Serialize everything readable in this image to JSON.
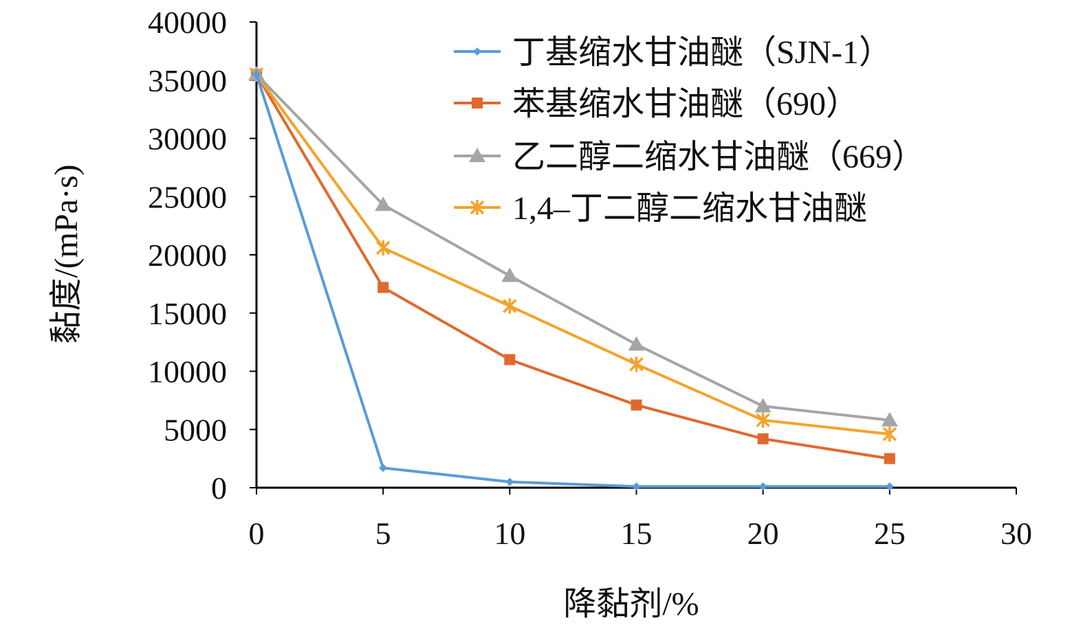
{
  "chart_data": {
    "type": "line",
    "xlabel": "降黏剂/%",
    "ylabel": "黏度/(mPa·s)",
    "x": [
      0,
      5,
      10,
      15,
      20,
      25
    ],
    "xlim": [
      0,
      30
    ],
    "ylim": [
      0,
      40000
    ],
    "xticks": [
      "0",
      "5",
      "10",
      "15",
      "20",
      "25",
      "30"
    ],
    "yticks": [
      "0",
      "5000",
      "10000",
      "15000",
      "20000",
      "25000",
      "30000",
      "35000",
      "40000"
    ],
    "grid": false,
    "legend_position": "top-right",
    "series": [
      {
        "name": "丁基缩水甘油醚（SJN-1）",
        "marker": "diamond",
        "color": "#5B9BD5",
        "values": [
          35500,
          1700,
          500,
          100,
          100,
          100
        ]
      },
      {
        "name": "苯基缩水甘油醚（690）",
        "marker": "square",
        "color": "#E0692E",
        "values": [
          35500,
          17200,
          11000,
          7100,
          4200,
          2500
        ]
      },
      {
        "name": "乙二醇二缩水甘油醚（669）",
        "marker": "triangle",
        "color": "#A5A5A5",
        "values": [
          35500,
          24300,
          18200,
          12300,
          7000,
          5800
        ]
      },
      {
        "name": "1,4–丁二醇二缩水甘油醚",
        "marker": "x",
        "color": "#F2A42A",
        "values": [
          35500,
          20600,
          15600,
          10600,
          5800,
          4600
        ]
      }
    ]
  }
}
